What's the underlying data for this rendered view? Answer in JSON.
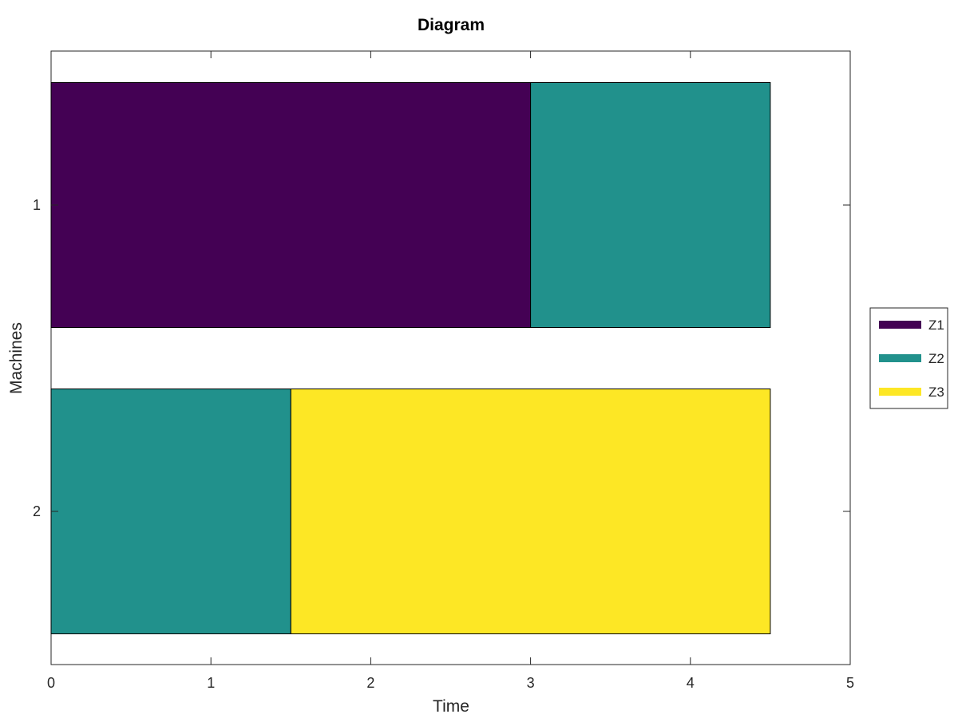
{
  "chart_data": {
    "type": "bar",
    "orientation": "horizontal",
    "stacked": true,
    "title": "Diagram",
    "xlabel": "Time",
    "ylabel": "Machines",
    "xlim": [
      0,
      5
    ],
    "x_ticks": [
      0,
      1,
      2,
      3,
      4,
      5
    ],
    "categories": [
      "1",
      "2"
    ],
    "series": [
      {
        "name": "Z1",
        "color": "#440154",
        "segments": [
          {
            "category": "1",
            "start": 0,
            "end": 3
          }
        ]
      },
      {
        "name": "Z2",
        "color": "#21918c",
        "segments": [
          {
            "category": "1",
            "start": 3,
            "end": 4.5
          },
          {
            "category": "2",
            "start": 0,
            "end": 1.5
          }
        ]
      },
      {
        "name": "Z3",
        "color": "#fde725",
        "segments": [
          {
            "category": "2",
            "start": 1.5,
            "end": 4.5
          }
        ]
      }
    ],
    "legend_position": "right",
    "grid": false
  }
}
